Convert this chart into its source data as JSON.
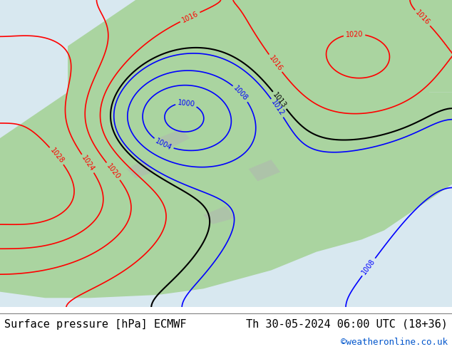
{
  "title_left": "Surface pressure [hPa] ECMWF",
  "title_right": "Th 30-05-2024 06:00 UTC (18+36)",
  "credit": "©weatheronline.co.uk",
  "bg_map_color": "#aad4a0",
  "bg_ocean_color": "#d8e8f0",
  "bg_bottom_color": "#ffffff",
  "text_color_black": "#000000",
  "text_color_blue": "#0000cc",
  "text_color_red": "#cc0000",
  "text_credit_color": "#0055cc",
  "font_size_title": 11,
  "font_size_credit": 9,
  "bottom_bar_height": 0.12
}
